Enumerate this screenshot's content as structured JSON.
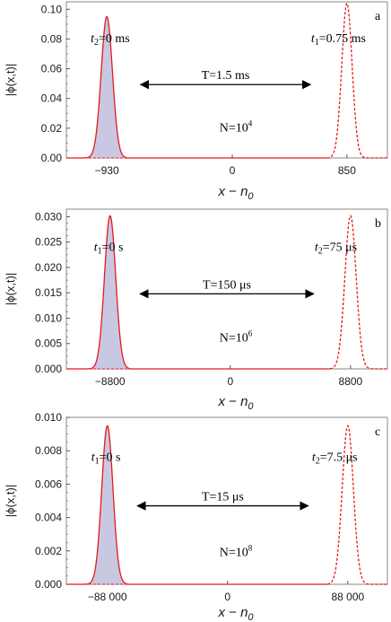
{
  "colors": {
    "curve": "#e41a1c",
    "fill": "#c9c8e3",
    "frame": "#888888",
    "arrow": "#000000"
  },
  "chart_data": [
    {
      "type": "line",
      "panel_label": "a",
      "xlabel_var": "x",
      "xlabel_op": " − ",
      "xlabel_base": "n",
      "xlabel_sub": "0",
      "ylabel": "|ϕ(x,t)|",
      "xlim": [
        -1230,
        1150
      ],
      "ylim": [
        0,
        0.105
      ],
      "xticks": [
        -930,
        0,
        850
      ],
      "xtick_labels": [
        "−930",
        "0",
        "850"
      ],
      "yticks": [
        0.0,
        0.02,
        0.04,
        0.06,
        0.08,
        0.1
      ],
      "ytick_labels": [
        "0.00",
        "0.02",
        "0.04",
        "0.06",
        "0.08",
        "0.10"
      ],
      "series": [
        {
          "style": "solid",
          "filled": true,
          "center": -930,
          "peak": 0.095,
          "sigma": 42,
          "domain": [
            -1230,
            -780
          ]
        },
        {
          "style": "dashed",
          "filled": false,
          "center": 850,
          "peak": 0.104,
          "sigma": 38,
          "domain": [
            700,
            1150
          ]
        }
      ],
      "arrow": {
        "from": -680,
        "to": 580
      },
      "ann_left": {
        "sym": "t",
        "sub": "2",
        "rest": "=0 ms"
      },
      "ann_right": {
        "sym": "t",
        "sub": "1",
        "rest": "=0.75 ms"
      },
      "ann_T": "T=1.5 ms",
      "ann_N_base": "N=10",
      "ann_N_exp": "4"
    },
    {
      "type": "line",
      "panel_label": "b",
      "xlabel_var": "x",
      "xlabel_op": " − ",
      "xlabel_base": "n",
      "xlabel_sub": "0",
      "ylabel": "|ϕ(x,t)|",
      "xlim": [
        -12000,
        11500
      ],
      "ylim": [
        0,
        0.0315
      ],
      "xticks": [
        -8800,
        0,
        8800
      ],
      "xtick_labels": [
        "−8800",
        "0",
        "8800"
      ],
      "yticks": [
        0.0,
        0.005,
        0.01,
        0.015,
        0.02,
        0.025,
        0.03
      ],
      "ytick_labels": [
        "0.000",
        "0.005",
        "0.010",
        "0.015",
        "0.020",
        "0.025",
        "0.030"
      ],
      "series": [
        {
          "style": "solid",
          "filled": true,
          "center": -8800,
          "peak": 0.0302,
          "sigma": 410,
          "domain": [
            -12000,
            -7300
          ]
        },
        {
          "style": "dashed",
          "filled": false,
          "center": 8800,
          "peak": 0.0302,
          "sigma": 410,
          "domain": [
            7300,
            11500
          ]
        }
      ],
      "arrow": {
        "from": -6600,
        "to": 6100
      },
      "ann_left": {
        "sym": "t",
        "sub": "1",
        "rest": "=0 s"
      },
      "ann_right": {
        "sym": "t",
        "sub": "2",
        "rest": "=75 μs"
      },
      "ann_T": "T=150 μs",
      "ann_N_base": "N=10",
      "ann_N_exp": "6"
    },
    {
      "type": "line",
      "panel_label": "c",
      "xlabel_var": "x",
      "xlabel_op": " − ",
      "xlabel_base": "n",
      "xlabel_sub": "0",
      "ylabel": "|ϕ(x,t)|",
      "xlim": [
        -118000,
        117000
      ],
      "ylim": [
        0,
        0.01
      ],
      "xticks": [
        -88000,
        0,
        88000
      ],
      "xtick_labels": [
        "−88 000",
        "0",
        "88 000"
      ],
      "yticks": [
        0.0,
        0.002,
        0.004,
        0.006,
        0.008,
        0.01
      ],
      "ytick_labels": [
        "0.000",
        "0.002",
        "0.004",
        "0.006",
        "0.008",
        "0.010"
      ],
      "series": [
        {
          "style": "solid",
          "filled": true,
          "center": -88000,
          "peak": 0.0095,
          "sigma": 4100,
          "domain": [
            -118000,
            -73000
          ]
        },
        {
          "style": "dashed",
          "filled": false,
          "center": 88000,
          "peak": 0.0095,
          "sigma": 4100,
          "domain": [
            73000,
            117000
          ]
        }
      ],
      "arrow": {
        "from": -66000,
        "to": 59000
      },
      "ann_left": {
        "sym": "t",
        "sub": "1",
        "rest": "=0 s"
      },
      "ann_right": {
        "sym": "t",
        "sub": "2",
        "rest": "=7.5 μs"
      },
      "ann_T": "T=15 μs",
      "ann_N_base": "N=10",
      "ann_N_exp": "8"
    }
  ]
}
